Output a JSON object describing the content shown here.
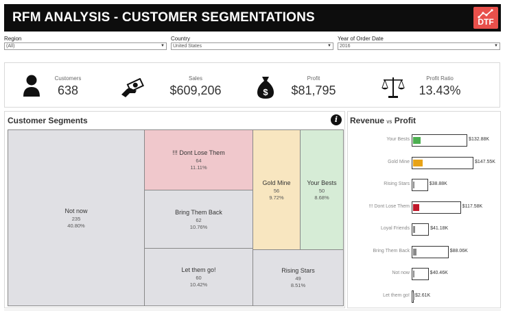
{
  "header": {
    "title": "RFM ANALYSIS - CUSTOMER SEGMENTATIONS",
    "logo_text": "DTF",
    "logo_color": "#e8504b"
  },
  "filters": [
    {
      "label": "Region",
      "value": "(All)"
    },
    {
      "label": "Country",
      "value": "United States"
    },
    {
      "label": "Year of Order Date",
      "value": "2016"
    }
  ],
  "kpis": [
    {
      "label": "Customers",
      "value": "638",
      "icon": "person-icon"
    },
    {
      "label": "Sales",
      "value": "$609,206",
      "icon": "money-hand-icon"
    },
    {
      "label": "Profit",
      "value": "$81,795",
      "icon": "money-bag-icon"
    },
    {
      "label": "Profit Ratio",
      "value": "13.43%",
      "icon": "scale-icon"
    }
  ],
  "segments_panel": {
    "title": "Customer Segments",
    "tiles": [
      {
        "name": "Not now",
        "count": "235",
        "pct": "40.80%",
        "color": "#e0e0e4"
      },
      {
        "name": "!!! Dont Lose Them",
        "count": "64",
        "pct": "11.11%",
        "color": "#f0c8cc"
      },
      {
        "name": "Bring Them Back",
        "count": "62",
        "pct": "10.76%",
        "color": "#e0e0e4"
      },
      {
        "name": "Let them go!",
        "count": "60",
        "pct": "10.42%",
        "color": "#e0e0e4"
      },
      {
        "name": "Gold Mine",
        "count": "56",
        "pct": "9.72%",
        "color": "#f8e6c0"
      },
      {
        "name": "Your Bests",
        "count": "50",
        "pct": "8.68%",
        "color": "#d6ecd6"
      },
      {
        "name": "Rising Stars",
        "count": "49",
        "pct": "8.51%",
        "color": "#e0e0e4"
      }
    ]
  },
  "revenue_panel": {
    "title_a": "Revenue",
    "title_vs": "vs",
    "title_b": "Profit",
    "chart_data": {
      "type": "bar",
      "categories": [
        "Your Bests",
        "Gold Mine",
        "Rising Stars",
        "!!! Dont Lose Them",
        "Loyal Friends",
        "Bring Them Back",
        "Not now",
        "Let them go!"
      ],
      "series": [
        {
          "values": [
            132880,
            147550,
            38880,
            117580,
            41180,
            88060,
            40460,
            2610
          ]
        }
      ],
      "value_labels": [
        "$132.88K",
        "$147.55K",
        "$38.88K",
        "$117.58K",
        "$41.18K",
        "$88.06K",
        "$40.46K",
        "$2.61K"
      ],
      "inner_fraction": [
        0.13,
        0.16,
        0.1,
        0.13,
        0.1,
        0.09,
        0.08,
        0.5
      ],
      "inner_colors": [
        "#4caf50",
        "#e8a317",
        "#888888",
        "#c0182a",
        "#888888",
        "#888888",
        "#888888",
        "#888888"
      ]
    }
  }
}
